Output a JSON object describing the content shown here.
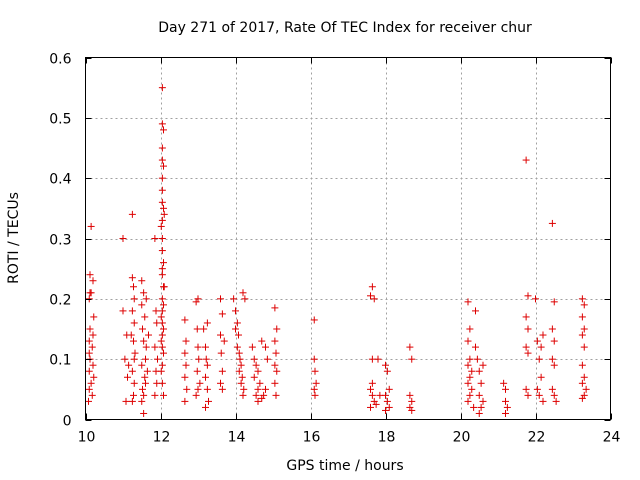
{
  "chart_data": {
    "type": "scatter",
    "title": "Day 271 of 2017, Rate Of TEC Index for receiver chur",
    "xlabel": "GPS time / hours",
    "ylabel": "ROTI / TECUs",
    "xlim": [
      10,
      24
    ],
    "ylim": [
      0,
      0.6
    ],
    "xticks": [
      "10",
      "12",
      "14",
      "16",
      "18",
      "20",
      "22",
      "24"
    ],
    "yticks": [
      "0",
      "0.1",
      "0.2",
      "0.3",
      "0.4",
      "0.5",
      "0.6"
    ],
    "grid": true,
    "marker": "plus",
    "color": "#dd0000",
    "series": [
      {
        "points": [
          [
            10.08,
            0.03
          ],
          [
            10.1,
            0.05
          ],
          [
            10.1,
            0.08
          ],
          [
            10.12,
            0.1
          ],
          [
            10.1,
            0.13
          ],
          [
            10.1,
            0.2
          ],
          [
            10.12,
            0.21
          ],
          [
            10.15,
            0.21
          ],
          [
            10.2,
            0.23
          ],
          [
            10.12,
            0.24
          ],
          [
            10.15,
            0.32
          ],
          [
            10.15,
            0.06
          ],
          [
            10.18,
            0.04
          ],
          [
            10.2,
            0.09
          ],
          [
            10.2,
            0.14
          ],
          [
            10.22,
            0.17
          ],
          [
            10.22,
            0.07
          ],
          [
            10.1,
            0.11
          ],
          [
            10.12,
            0.15
          ],
          [
            10.18,
            0.12
          ],
          [
            11.0,
            0.3
          ],
          [
            11.0,
            0.18
          ],
          [
            11.05,
            0.1
          ],
          [
            11.1,
            0.14
          ],
          [
            11.08,
            0.03
          ],
          [
            11.12,
            0.07
          ],
          [
            11.15,
            0.09
          ],
          [
            11.25,
            0.34
          ],
          [
            11.25,
            0.235
          ],
          [
            11.28,
            0.22
          ],
          [
            11.3,
            0.2
          ],
          [
            11.25,
            0.18
          ],
          [
            11.3,
            0.16
          ],
          [
            11.28,
            0.13
          ],
          [
            11.3,
            0.1
          ],
          [
            11.25,
            0.08
          ],
          [
            11.3,
            0.06
          ],
          [
            11.28,
            0.04
          ],
          [
            11.25,
            0.03
          ],
          [
            11.32,
            0.11
          ],
          [
            11.22,
            0.14
          ],
          [
            11.5,
            0.23
          ],
          [
            11.55,
            0.21
          ],
          [
            11.5,
            0.19
          ],
          [
            11.58,
            0.17
          ],
          [
            11.52,
            0.15
          ],
          [
            11.55,
            0.13
          ],
          [
            11.6,
            0.1
          ],
          [
            11.5,
            0.09
          ],
          [
            11.58,
            0.07
          ],
          [
            11.52,
            0.05
          ],
          [
            11.55,
            0.04
          ],
          [
            11.5,
            0.03
          ],
          [
            11.62,
            0.12
          ],
          [
            11.65,
            0.08
          ],
          [
            11.6,
            0.06
          ],
          [
            11.68,
            0.14
          ],
          [
            11.62,
            0.2
          ],
          [
            11.55,
            0.01
          ],
          [
            11.85,
            0.3
          ],
          [
            11.88,
            0.18
          ],
          [
            11.9,
            0.16
          ],
          [
            11.85,
            0.12
          ],
          [
            11.92,
            0.1
          ],
          [
            11.88,
            0.08
          ],
          [
            11.9,
            0.06
          ],
          [
            11.85,
            0.04
          ],
          [
            12.05,
            0.55
          ],
          [
            12.05,
            0.49
          ],
          [
            12.08,
            0.48
          ],
          [
            12.05,
            0.45
          ],
          [
            12.05,
            0.43
          ],
          [
            12.08,
            0.42
          ],
          [
            12.05,
            0.4
          ],
          [
            12.05,
            0.38
          ],
          [
            12.05,
            0.36
          ],
          [
            12.08,
            0.35
          ],
          [
            12.05,
            0.33
          ],
          [
            12.02,
            0.32
          ],
          [
            12.05,
            0.3
          ],
          [
            12.05,
            0.28
          ],
          [
            12.08,
            0.26
          ],
          [
            12.05,
            0.25
          ],
          [
            12.05,
            0.24
          ],
          [
            12.08,
            0.22
          ],
          [
            12.05,
            0.2
          ],
          [
            12.08,
            0.19
          ],
          [
            12.05,
            0.18
          ],
          [
            12.02,
            0.17
          ],
          [
            12.05,
            0.16
          ],
          [
            12.08,
            0.15
          ],
          [
            12.05,
            0.14
          ],
          [
            12.02,
            0.13
          ],
          [
            12.05,
            0.12
          ],
          [
            12.08,
            0.11
          ],
          [
            12.05,
            0.09
          ],
          [
            12.02,
            0.08
          ],
          [
            12.05,
            0.06
          ],
          [
            12.08,
            0.04
          ],
          [
            12.1,
            0.34
          ],
          [
            12.1,
            0.22
          ],
          [
            12.65,
            0.165
          ],
          [
            12.68,
            0.13
          ],
          [
            12.65,
            0.11
          ],
          [
            12.68,
            0.09
          ],
          [
            12.65,
            0.07
          ],
          [
            12.7,
            0.05
          ],
          [
            12.65,
            0.03
          ],
          [
            12.95,
            0.195
          ],
          [
            13.0,
            0.2
          ],
          [
            12.98,
            0.15
          ],
          [
            13.0,
            0.12
          ],
          [
            13.02,
            0.1
          ],
          [
            12.98,
            0.08
          ],
          [
            13.05,
            0.06
          ],
          [
            13.0,
            0.05
          ],
          [
            12.95,
            0.04
          ],
          [
            13.15,
            0.15
          ],
          [
            13.2,
            0.12
          ],
          [
            13.22,
            0.1
          ],
          [
            13.25,
            0.09
          ],
          [
            13.2,
            0.07
          ],
          [
            13.25,
            0.05
          ],
          [
            13.28,
            0.03
          ],
          [
            13.25,
            0.16
          ],
          [
            13.2,
            0.02
          ],
          [
            13.6,
            0.2
          ],
          [
            13.65,
            0.175
          ],
          [
            13.6,
            0.14
          ],
          [
            13.7,
            0.13
          ],
          [
            13.62,
            0.11
          ],
          [
            13.65,
            0.08
          ],
          [
            13.6,
            0.06
          ],
          [
            13.65,
            0.05
          ],
          [
            13.95,
            0.2
          ],
          [
            14.0,
            0.18
          ],
          [
            14.05,
            0.16
          ],
          [
            14.0,
            0.15
          ],
          [
            14.08,
            0.14
          ],
          [
            14.05,
            0.12
          ],
          [
            14.1,
            0.11
          ],
          [
            14.12,
            0.1
          ],
          [
            14.15,
            0.09
          ],
          [
            14.1,
            0.08
          ],
          [
            14.18,
            0.07
          ],
          [
            14.15,
            0.06
          ],
          [
            14.2,
            0.21
          ],
          [
            14.22,
            0.05
          ],
          [
            14.25,
            0.2
          ],
          [
            14.2,
            0.04
          ],
          [
            14.45,
            0.12
          ],
          [
            14.5,
            0.1
          ],
          [
            14.55,
            0.09
          ],
          [
            14.6,
            0.08
          ],
          [
            14.5,
            0.07
          ],
          [
            14.65,
            0.06
          ],
          [
            14.6,
            0.05
          ],
          [
            14.55,
            0.04
          ],
          [
            14.7,
            0.035
          ],
          [
            14.6,
            0.03
          ],
          [
            14.75,
            0.04
          ],
          [
            14.8,
            0.05
          ],
          [
            14.8,
            0.12
          ],
          [
            14.85,
            0.1
          ],
          [
            14.7,
            0.13
          ],
          [
            15.05,
            0.185
          ],
          [
            15.1,
            0.15
          ],
          [
            15.05,
            0.13
          ],
          [
            15.08,
            0.11
          ],
          [
            15.05,
            0.09
          ],
          [
            15.1,
            0.08
          ],
          [
            15.05,
            0.06
          ],
          [
            15.08,
            0.04
          ],
          [
            16.1,
            0.165
          ],
          [
            16.1,
            0.1
          ],
          [
            16.12,
            0.08
          ],
          [
            16.15,
            0.06
          ],
          [
            16.1,
            0.05
          ],
          [
            16.12,
            0.04
          ],
          [
            17.6,
            0.205
          ],
          [
            17.65,
            0.22
          ],
          [
            17.7,
            0.2
          ],
          [
            17.65,
            0.1
          ],
          [
            17.6,
            0.05
          ],
          [
            17.65,
            0.04
          ],
          [
            17.7,
            0.03
          ],
          [
            17.6,
            0.02
          ],
          [
            17.75,
            0.025
          ],
          [
            17.8,
            0.1
          ],
          [
            17.85,
            0.04
          ],
          [
            17.65,
            0.06
          ],
          [
            18.0,
            0.09
          ],
          [
            18.05,
            0.08
          ],
          [
            18.1,
            0.05
          ],
          [
            18.0,
            0.04
          ],
          [
            18.05,
            0.03
          ],
          [
            18.1,
            0.02
          ],
          [
            18.0,
            0.015
          ],
          [
            18.65,
            0.12
          ],
          [
            18.7,
            0.1
          ],
          [
            18.65,
            0.04
          ],
          [
            18.7,
            0.03
          ],
          [
            18.65,
            0.02
          ],
          [
            18.7,
            0.015
          ],
          [
            20.2,
            0.195
          ],
          [
            20.25,
            0.15
          ],
          [
            20.2,
            0.13
          ],
          [
            20.25,
            0.1
          ],
          [
            20.2,
            0.09
          ],
          [
            20.3,
            0.08
          ],
          [
            20.25,
            0.07
          ],
          [
            20.2,
            0.06
          ],
          [
            20.3,
            0.05
          ],
          [
            20.25,
            0.04
          ],
          [
            20.2,
            0.03
          ],
          [
            20.35,
            0.02
          ],
          [
            20.4,
            0.12
          ],
          [
            20.45,
            0.1
          ],
          [
            20.5,
            0.08
          ],
          [
            20.55,
            0.06
          ],
          [
            20.5,
            0.04
          ],
          [
            20.6,
            0.03
          ],
          [
            20.55,
            0.02
          ],
          [
            20.5,
            0.01
          ],
          [
            20.4,
            0.18
          ],
          [
            20.6,
            0.09
          ],
          [
            21.15,
            0.06
          ],
          [
            21.2,
            0.05
          ],
          [
            21.2,
            0.03
          ],
          [
            21.25,
            0.02
          ],
          [
            21.2,
            0.01
          ],
          [
            21.75,
            0.43
          ],
          [
            21.8,
            0.205
          ],
          [
            21.75,
            0.17
          ],
          [
            21.8,
            0.15
          ],
          [
            21.75,
            0.12
          ],
          [
            21.8,
            0.11
          ],
          [
            21.75,
            0.05
          ],
          [
            21.8,
            0.04
          ],
          [
            22.0,
            0.2
          ],
          [
            22.05,
            0.13
          ],
          [
            22.1,
            0.1
          ],
          [
            22.15,
            0.07
          ],
          [
            22.05,
            0.05
          ],
          [
            22.1,
            0.04
          ],
          [
            22.2,
            0.03
          ],
          [
            22.15,
            0.12
          ],
          [
            22.2,
            0.14
          ],
          [
            22.45,
            0.325
          ],
          [
            22.5,
            0.195
          ],
          [
            22.45,
            0.15
          ],
          [
            22.5,
            0.13
          ],
          [
            22.45,
            0.1
          ],
          [
            22.5,
            0.09
          ],
          [
            22.45,
            0.05
          ],
          [
            22.5,
            0.04
          ],
          [
            22.55,
            0.03
          ],
          [
            23.25,
            0.2
          ],
          [
            23.3,
            0.19
          ],
          [
            23.25,
            0.17
          ],
          [
            23.3,
            0.15
          ],
          [
            23.25,
            0.14
          ],
          [
            23.3,
            0.12
          ],
          [
            23.25,
            0.09
          ],
          [
            23.3,
            0.07
          ],
          [
            23.25,
            0.06
          ],
          [
            23.3,
            0.04
          ],
          [
            23.25,
            0.035
          ],
          [
            23.35,
            0.05
          ]
        ]
      }
    ]
  }
}
